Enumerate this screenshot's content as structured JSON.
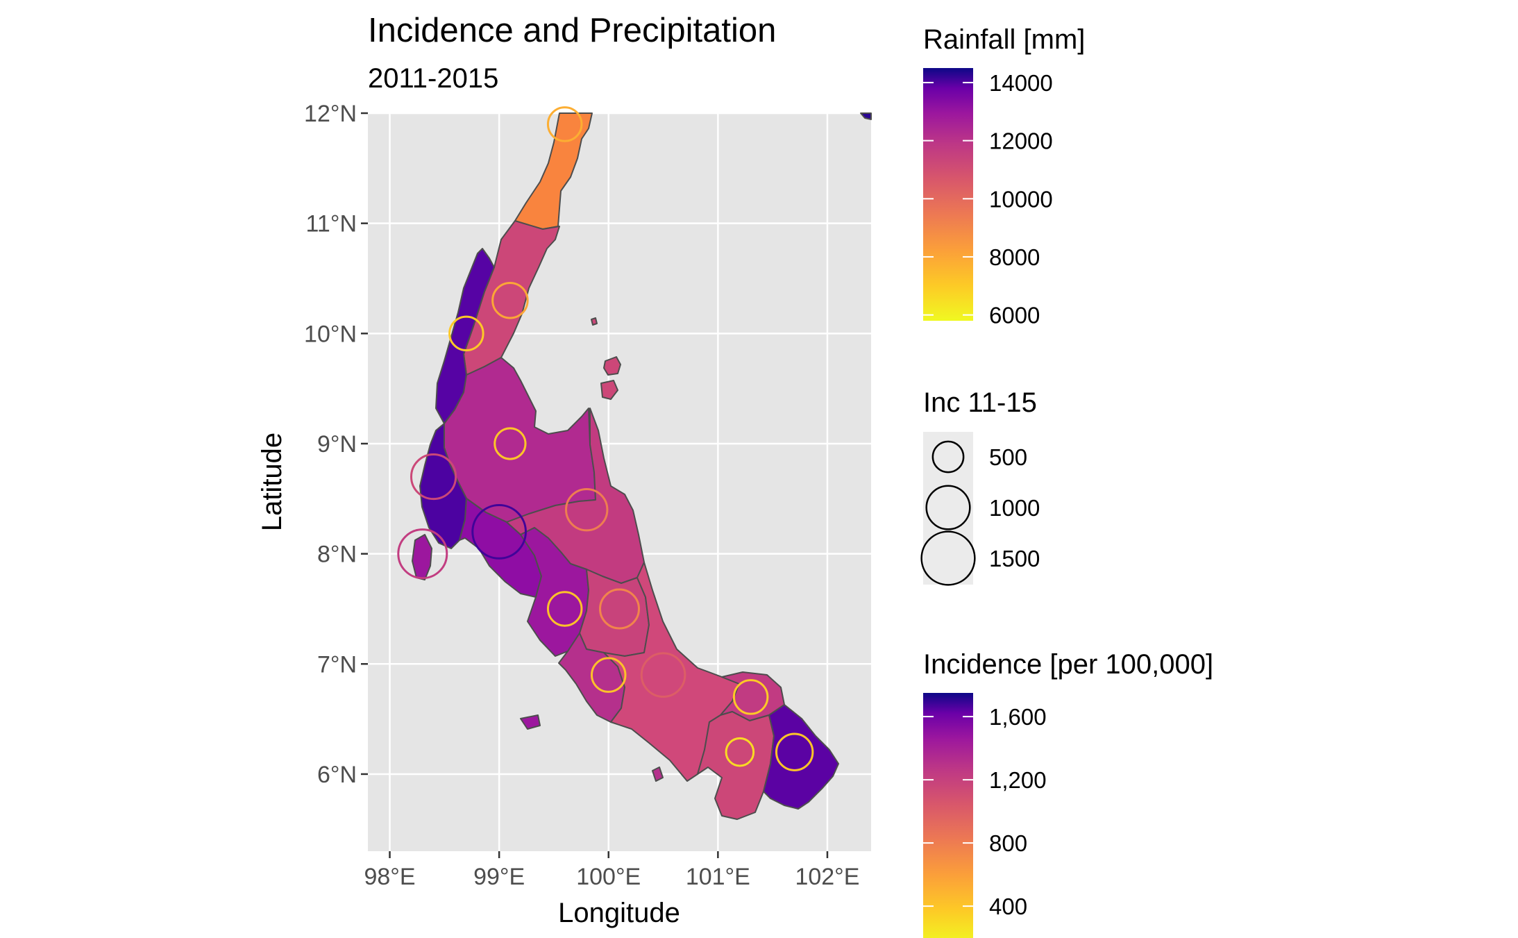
{
  "title": "Incidence and Precipitation",
  "subtitle": "2011-2015",
  "axes": {
    "x_label": "Longitude",
    "y_label": "Latitude",
    "x_ticks": [
      "98°E",
      "99°E",
      "100°E",
      "101°E",
      "102°E"
    ],
    "y_ticks": [
      "12°N",
      "11°N",
      "10°N",
      "9°N",
      "8°N",
      "7°N",
      "6°N"
    ],
    "x_range": [
      97.8,
      102.4
    ],
    "y_range": [
      5.3,
      12.0
    ],
    "grid": true
  },
  "legends": {
    "rainfall": {
      "title": "Rainfall [mm]",
      "labels": [
        "14000",
        "12000",
        "10000",
        "8000",
        "6000"
      ],
      "range": [
        5800,
        14500
      ],
      "palette": "plasma"
    },
    "inc_size": {
      "title": "Inc 11-15",
      "labels": [
        "500",
        "1000",
        "1500"
      ]
    },
    "incidence": {
      "title": "Incidence [per 100,000]",
      "labels": [
        "1,600",
        "1,200",
        "800",
        "400"
      ],
      "range": [
        150,
        1750
      ],
      "palette": "plasma"
    }
  },
  "colors": {
    "panel_bg": "#e5e5e5",
    "gridline": "#ffffff",
    "province_border": "#4d4d4d",
    "tick_text": "#4d4d4d",
    "rainfall_fills": {
      "chumphon": "#f9843e",
      "upper_chumphon": "#cc4778",
      "ranong": "#5603a4",
      "surat_thani": "#b12a90",
      "phang_nga": "#4c02a1",
      "krabi": "#8f0da4",
      "nakhon_si_thammarat": "#c23b80",
      "trang": "#9c179e",
      "phatthalung": "#c8437b",
      "satun": "#b5308c",
      "songkhla": "#d0487a",
      "pattani": "#c13b82",
      "yala": "#cc4778",
      "narathiwat": "#5b02a3",
      "samui": "#cc4778"
    }
  },
  "chart_data": {
    "type": "scatter",
    "title": "Incidence and Precipitation",
    "subtitle": "2011-2015",
    "xlabel": "Longitude",
    "ylabel": "Latitude",
    "xlim": [
      97.8,
      102.4
    ],
    "ylim": [
      5.3,
      12.0
    ],
    "points": [
      {
        "lon": 99.6,
        "lat": 11.9,
        "inc": 600,
        "incidence": 520
      },
      {
        "lon": 99.1,
        "lat": 10.3,
        "inc": 650,
        "incidence": 560
      },
      {
        "lon": 98.7,
        "lat": 10.0,
        "inc": 600,
        "incidence": 380
      },
      {
        "lon": 99.1,
        "lat": 9.0,
        "inc": 500,
        "incidence": 400
      },
      {
        "lon": 98.4,
        "lat": 8.7,
        "inc": 1050,
        "incidence": 1150
      },
      {
        "lon": 99.8,
        "lat": 8.4,
        "inc": 900,
        "incidence": 800
      },
      {
        "lon": 99.0,
        "lat": 8.2,
        "inc": 1500,
        "incidence": 1680
      },
      {
        "lon": 98.3,
        "lat": 8.0,
        "inc": 1250,
        "incidence": 1230
      },
      {
        "lon": 99.6,
        "lat": 7.5,
        "inc": 600,
        "incidence": 420
      },
      {
        "lon": 100.1,
        "lat": 7.5,
        "inc": 800,
        "incidence": 760
      },
      {
        "lon": 100.0,
        "lat": 6.9,
        "inc": 600,
        "incidence": 420
      },
      {
        "lon": 100.5,
        "lat": 6.9,
        "inc": 1000,
        "incidence": 1000
      },
      {
        "lon": 101.3,
        "lat": 6.7,
        "inc": 600,
        "incidence": 380
      },
      {
        "lon": 101.2,
        "lat": 6.2,
        "inc": 400,
        "incidence": 300
      },
      {
        "lon": 101.7,
        "lat": 6.2,
        "inc": 700,
        "incidence": 400
      }
    ]
  }
}
